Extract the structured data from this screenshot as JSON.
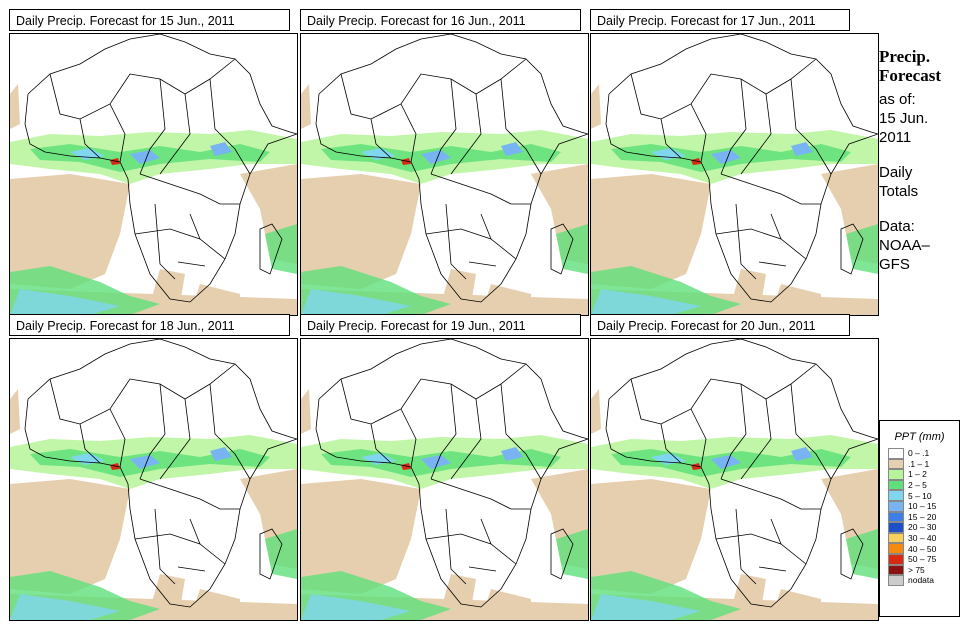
{
  "panels": [
    {
      "title": "Daily Precip. Forecast for  15 Jun., 2011"
    },
    {
      "title": "Daily Precip. Forecast for  16 Jun., 2011"
    },
    {
      "title": "Daily Precip. Forecast for  17 Jun., 2011"
    },
    {
      "title": "Daily Precip. Forecast for  18 Jun., 2011"
    },
    {
      "title": "Daily Precip. Forecast for  19 Jun., 2011"
    },
    {
      "title": "Daily Precip. Forecast for  20 Jun., 2011"
    }
  ],
  "side": {
    "heading_1": "Precip.",
    "heading_2": "Forecast",
    "asof_1": "as of:",
    "asof_2": "15 Jun.",
    "asof_3": "2011",
    "totals_1": "Daily",
    "totals_2": "Totals",
    "data_1": "Data:",
    "data_2": "NOAA–",
    "data_3": "GFS"
  },
  "legend": {
    "title": "PPT (mm)",
    "items": [
      {
        "label": "0 – .1",
        "color": "#ffffff"
      },
      {
        "label": ".1 – 1",
        "color": "#e6cfae"
      },
      {
        "label": "1 – 2",
        "color": "#b6f59a"
      },
      {
        "label": "2 – 5",
        "color": "#5fe07a"
      },
      {
        "label": "5 – 10",
        "color": "#7fd6ee"
      },
      {
        "label": "10 – 15",
        "color": "#78b4f2"
      },
      {
        "label": "15 – 20",
        "color": "#3e7ee8"
      },
      {
        "label": "20 – 30",
        "color": "#1c4fc8"
      },
      {
        "label": "30 – 40",
        "color": "#f7d060"
      },
      {
        "label": "40 – 50",
        "color": "#f58a10"
      },
      {
        "label": "50 – 75",
        "color": "#d82a10"
      },
      {
        "label": "> 75",
        "color": "#8c1010"
      },
      {
        "label": "nodata",
        "color": "#cccccc"
      }
    ]
  }
}
